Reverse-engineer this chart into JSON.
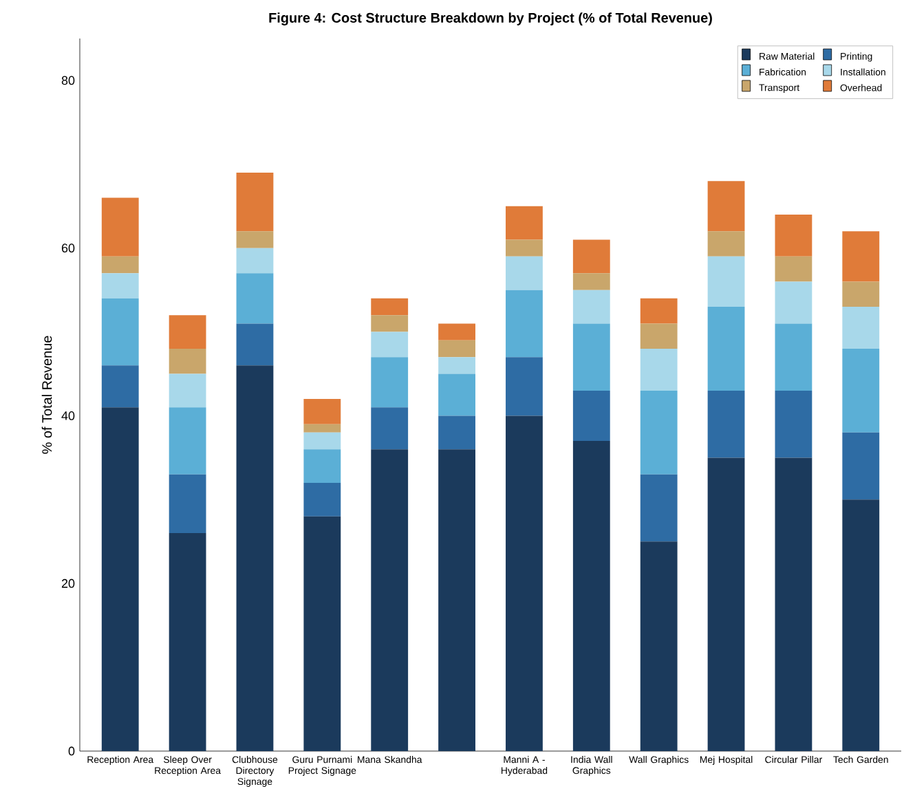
{
  "chart_data": {
    "type": "bar",
    "stacked": true,
    "title": "Figure 4: Cost Structure Breakdown by Project (% of Total Revenue)",
    "ylabel": "% of Total Revenue",
    "categories": [
      "Reception Area",
      "Sleep Over Reception Area",
      "Clubhouse Directory Signage",
      "Guru Purnami Project Signage",
      "Mana Skandha",
      null,
      "Manni A - Hyderabad",
      "India Wall Graphics",
      "Wall Graphics",
      "Mej Hospital",
      "Circular Pillar",
      "Tech Garden"
    ],
    "series": [
      {
        "name": "Raw Material",
        "color": "#1b3a5c",
        "values": [
          41,
          26,
          46,
          28,
          36,
          36,
          40,
          37,
          25,
          35,
          35,
          30
        ]
      },
      {
        "name": "Printing",
        "color": "#2e6ca4",
        "values": [
          5,
          7,
          5,
          4,
          5,
          4,
          7,
          6,
          8,
          8,
          8,
          8
        ]
      },
      {
        "name": "Fabrication",
        "color": "#5bafd6",
        "values": [
          8,
          8,
          6,
          4,
          6,
          5,
          8,
          8,
          10,
          10,
          8,
          10
        ]
      },
      {
        "name": "Installation",
        "color": "#a8d8ea",
        "values": [
          3,
          4,
          3,
          2,
          3,
          2,
          4,
          4,
          5,
          6,
          5,
          5
        ]
      },
      {
        "name": "Transport",
        "color": "#c9a66b",
        "values": [
          2,
          3,
          2,
          1,
          2,
          2,
          2,
          2,
          3,
          3,
          3,
          3
        ]
      },
      {
        "name": "Overhead",
        "color": "#e07b39",
        "values": [
          7,
          4,
          7,
          3,
          2,
          2,
          4,
          4,
          3,
          6,
          5,
          6
        ]
      }
    ],
    "ylim": [
      0,
      85
    ],
    "yticks": [
      0,
      20,
      40,
      60,
      80
    ],
    "grid": false,
    "legend": "top right"
  }
}
